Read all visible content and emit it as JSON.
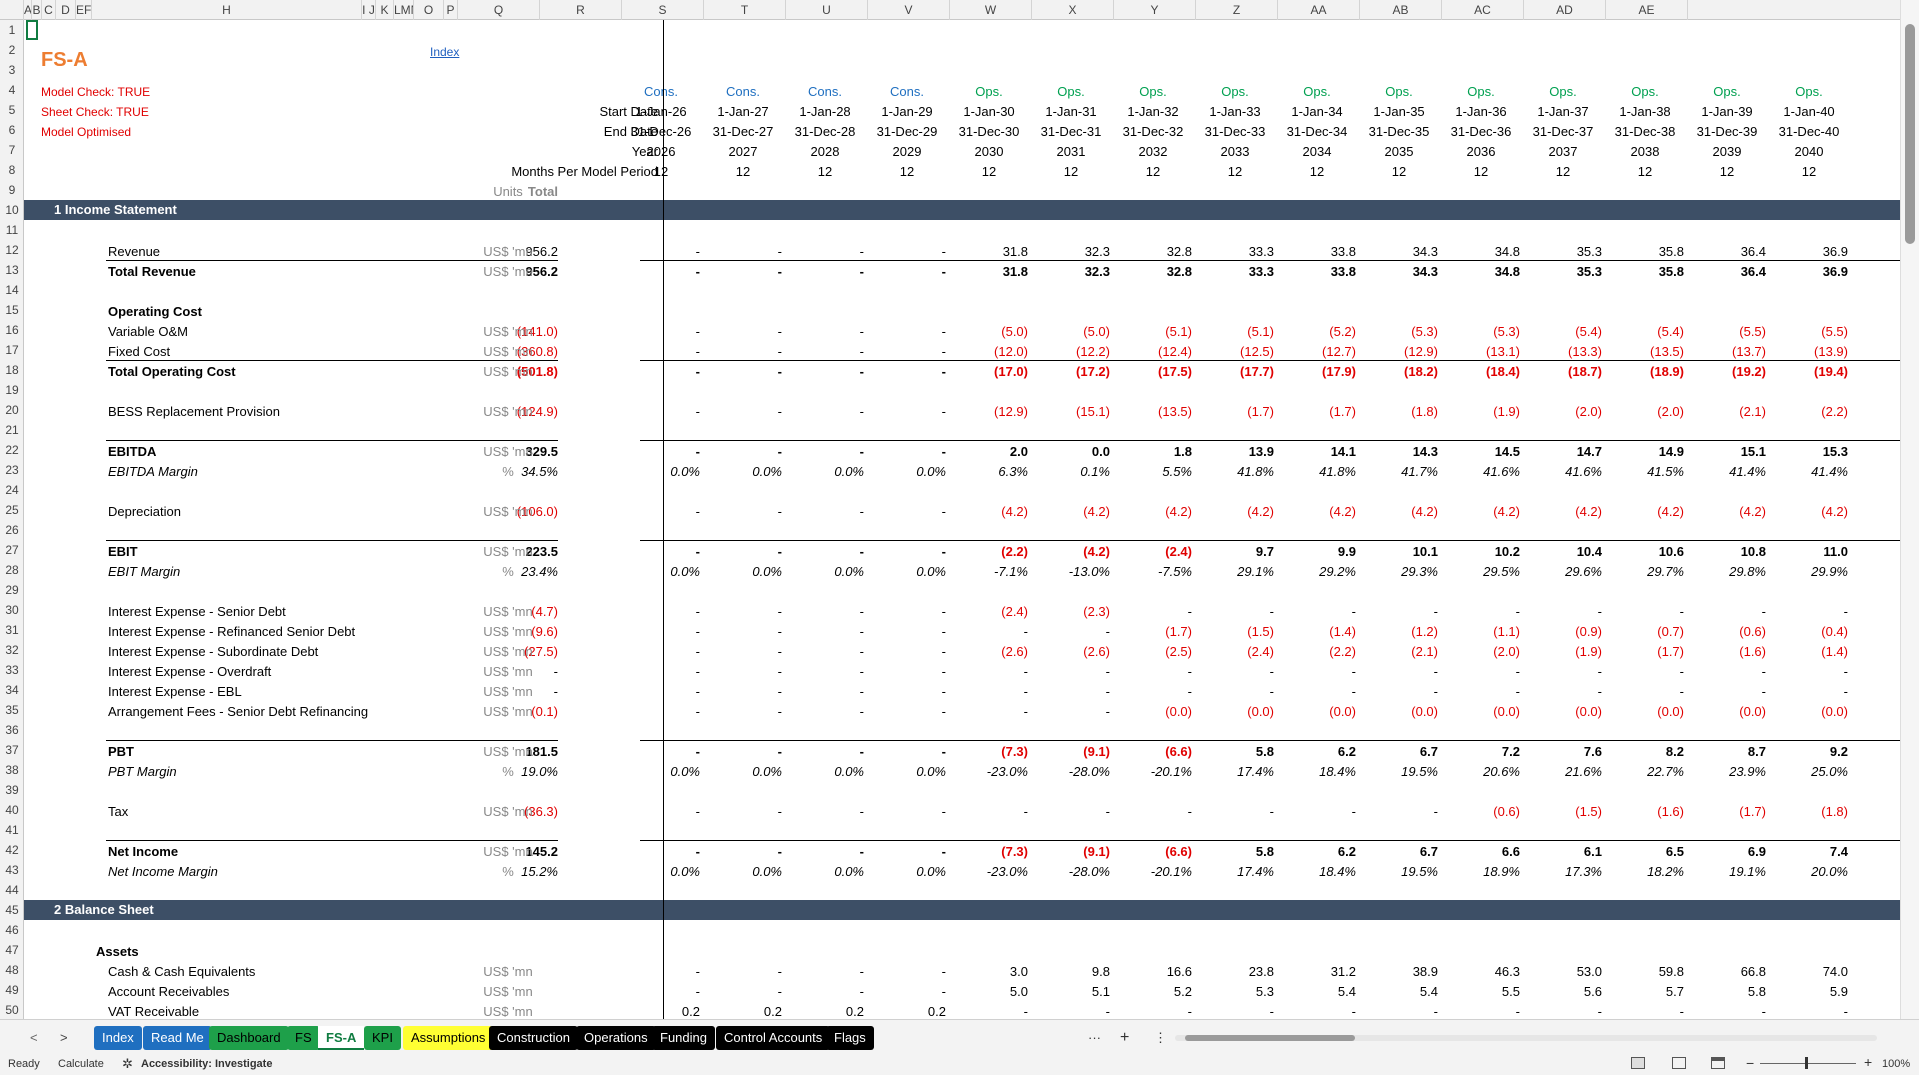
{
  "columns": [
    "A",
    "B",
    "C",
    "D",
    "EFG",
    "H",
    "I J",
    "K",
    "LMN",
    "O",
    "P",
    "Q",
    "R",
    "S",
    "T",
    "U",
    "V",
    "W",
    "X",
    "Y",
    "Z",
    "AA",
    "AB",
    "AC",
    "AD",
    "AE"
  ],
  "sheet": {
    "title": "FS-A",
    "index_link": "Index",
    "checks": [
      "Model Check: TRUE",
      "Sheet Check: TRUE",
      "Model Optimised"
    ],
    "header_labels": [
      "Start Date",
      "End Date",
      "Year",
      "Months Per Model Period"
    ],
    "total_label": "Total",
    "units_label": "Units",
    "periods": [
      "Cons.",
      "Cons.",
      "Cons.",
      "Cons.",
      "Ops.",
      "Ops.",
      "Ops.",
      "Ops.",
      "Ops.",
      "Ops.",
      "Ops.",
      "Ops.",
      "Ops.",
      "Ops.",
      "Ops."
    ],
    "start_dates": [
      "1-Jan-26",
      "1-Jan-27",
      "1-Jan-28",
      "1-Jan-29",
      "1-Jan-30",
      "1-Jan-31",
      "1-Jan-32",
      "1-Jan-33",
      "1-Jan-34",
      "1-Jan-35",
      "1-Jan-36",
      "1-Jan-37",
      "1-Jan-38",
      "1-Jan-39",
      "1-Jan-40"
    ],
    "end_dates": [
      "31-Dec-26",
      "31-Dec-27",
      "31-Dec-28",
      "31-Dec-29",
      "31-Dec-30",
      "31-Dec-31",
      "31-Dec-32",
      "31-Dec-33",
      "31-Dec-34",
      "31-Dec-35",
      "31-Dec-36",
      "31-Dec-37",
      "31-Dec-38",
      "31-Dec-39",
      "31-Dec-40"
    ],
    "years": [
      "2026",
      "2027",
      "2028",
      "2029",
      "2030",
      "2031",
      "2032",
      "2033",
      "2034",
      "2035",
      "2036",
      "2037",
      "2038",
      "2039",
      "2040"
    ],
    "months": [
      "12",
      "12",
      "12",
      "12",
      "12",
      "12",
      "12",
      "12",
      "12",
      "12",
      "12",
      "12",
      "12",
      "12",
      "12"
    ],
    "rows": [
      {
        "n": 10,
        "type": "section",
        "label": "1  Income Statement"
      },
      {
        "n": 12,
        "label": "Revenue",
        "total": "956.2",
        "unit": "US$ 'mn",
        "vals": [
          "-",
          "-",
          "-",
          "-",
          "31.8",
          "32.3",
          "32.8",
          "33.3",
          "33.8",
          "34.3",
          "34.8",
          "35.3",
          "35.8",
          "36.4",
          "36.9"
        ]
      },
      {
        "n": 13,
        "label": "Total Revenue",
        "style": "bold",
        "topline": true,
        "total": "956.2",
        "unit": "US$ 'mn",
        "vals": [
          "-",
          "-",
          "-",
          "-",
          "31.8",
          "32.3",
          "32.8",
          "33.3",
          "33.8",
          "34.3",
          "34.8",
          "35.3",
          "35.8",
          "36.4",
          "36.9"
        ]
      },
      {
        "n": 15,
        "label": "Operating Cost",
        "style": "bold"
      },
      {
        "n": 16,
        "label": "Variable O&M",
        "total": "(141.0)",
        "unit": "US$ 'mn",
        "vals": [
          "-",
          "-",
          "-",
          "-",
          "(5.0)",
          "(5.0)",
          "(5.1)",
          "(5.1)",
          "(5.2)",
          "(5.3)",
          "(5.3)",
          "(5.4)",
          "(5.4)",
          "(5.5)",
          "(5.5)"
        ]
      },
      {
        "n": 17,
        "label": "Fixed Cost",
        "total": "(360.8)",
        "unit": "US$ 'mn",
        "vals": [
          "-",
          "-",
          "-",
          "-",
          "(12.0)",
          "(12.2)",
          "(12.4)",
          "(12.5)",
          "(12.7)",
          "(12.9)",
          "(13.1)",
          "(13.3)",
          "(13.5)",
          "(13.7)",
          "(13.9)"
        ]
      },
      {
        "n": 18,
        "label": "Total Operating Cost",
        "style": "bold",
        "topline": true,
        "total": "(501.8)",
        "unit": "US$ 'mn",
        "vals": [
          "-",
          "-",
          "-",
          "-",
          "(17.0)",
          "(17.2)",
          "(17.5)",
          "(17.7)",
          "(17.9)",
          "(18.2)",
          "(18.4)",
          "(18.7)",
          "(18.9)",
          "(19.2)",
          "(19.4)"
        ]
      },
      {
        "n": 20,
        "label": "BESS Replacement Provision",
        "total": "(124.9)",
        "unit": "US$ 'mn",
        "vals": [
          "-",
          "-",
          "-",
          "-",
          "(12.9)",
          "(15.1)",
          "(13.5)",
          "(1.7)",
          "(1.7)",
          "(1.8)",
          "(1.9)",
          "(2.0)",
          "(2.0)",
          "(2.1)",
          "(2.2)"
        ]
      },
      {
        "n": 22,
        "label": "EBITDA",
        "style": "bold",
        "topline": true,
        "total": "329.5",
        "unit": "US$ 'mn",
        "vals": [
          "-",
          "-",
          "-",
          "-",
          "2.0",
          "0.0",
          "1.8",
          "13.9",
          "14.1",
          "14.3",
          "14.5",
          "14.7",
          "14.9",
          "15.1",
          "15.3"
        ]
      },
      {
        "n": 23,
        "label": "EBITDA Margin",
        "style": "italic",
        "total": "34.5%",
        "unit": "%",
        "vals": [
          "0.0%",
          "0.0%",
          "0.0%",
          "0.0%",
          "6.3%",
          "0.1%",
          "5.5%",
          "41.8%",
          "41.8%",
          "41.7%",
          "41.6%",
          "41.6%",
          "41.5%",
          "41.4%",
          "41.4%"
        ]
      },
      {
        "n": 25,
        "label": "Depreciation",
        "total": "(106.0)",
        "unit": "US$ 'mn",
        "vals": [
          "-",
          "-",
          "-",
          "-",
          "(4.2)",
          "(4.2)",
          "(4.2)",
          "(4.2)",
          "(4.2)",
          "(4.2)",
          "(4.2)",
          "(4.2)",
          "(4.2)",
          "(4.2)",
          "(4.2)"
        ]
      },
      {
        "n": 27,
        "label": "EBIT",
        "style": "bold",
        "topline": true,
        "total": "223.5",
        "unit": "US$ 'mn",
        "vals": [
          "-",
          "-",
          "-",
          "-",
          "(2.2)",
          "(4.2)",
          "(2.4)",
          "9.7",
          "9.9",
          "10.1",
          "10.2",
          "10.4",
          "10.6",
          "10.8",
          "11.0"
        ]
      },
      {
        "n": 28,
        "label": "EBIT Margin",
        "style": "italic",
        "total": "23.4%",
        "unit": "%",
        "vals": [
          "0.0%",
          "0.0%",
          "0.0%",
          "0.0%",
          "-7.1%",
          "-13.0%",
          "-7.5%",
          "29.1%",
          "29.2%",
          "29.3%",
          "29.5%",
          "29.6%",
          "29.7%",
          "29.8%",
          "29.9%"
        ]
      },
      {
        "n": 30,
        "label": "Interest Expense - Senior Debt",
        "total": "(4.7)",
        "unit": "US$ 'mn",
        "vals": [
          "-",
          "-",
          "-",
          "-",
          "(2.4)",
          "(2.3)",
          "-",
          "-",
          "-",
          "-",
          "-",
          "-",
          "-",
          "-",
          "-"
        ]
      },
      {
        "n": 31,
        "label": "Interest Expense - Refinanced Senior Debt",
        "total": "(9.6)",
        "unit": "US$ 'mn",
        "vals": [
          "-",
          "-",
          "-",
          "-",
          "-",
          "-",
          "(1.7)",
          "(1.5)",
          "(1.4)",
          "(1.2)",
          "(1.1)",
          "(0.9)",
          "(0.7)",
          "(0.6)",
          "(0.4)"
        ]
      },
      {
        "n": 32,
        "label": "Interest Expense - Subordinate Debt",
        "total": "(27.5)",
        "unit": "US$ 'mn",
        "vals": [
          "-",
          "-",
          "-",
          "-",
          "(2.6)",
          "(2.6)",
          "(2.5)",
          "(2.4)",
          "(2.2)",
          "(2.1)",
          "(2.0)",
          "(1.9)",
          "(1.7)",
          "(1.6)",
          "(1.4)"
        ]
      },
      {
        "n": 33,
        "label": "Interest Expense - Overdraft",
        "total": "-",
        "unit": "US$ 'mn",
        "vals": [
          "-",
          "-",
          "-",
          "-",
          "-",
          "-",
          "-",
          "-",
          "-",
          "-",
          "-",
          "-",
          "-",
          "-",
          "-"
        ]
      },
      {
        "n": 34,
        "label": "Interest Expense - EBL",
        "total": "-",
        "unit": "US$ 'mn",
        "vals": [
          "-",
          "-",
          "-",
          "-",
          "-",
          "-",
          "-",
          "-",
          "-",
          "-",
          "-",
          "-",
          "-",
          "-",
          "-"
        ]
      },
      {
        "n": 35,
        "label": "Arrangement Fees - Senior Debt Refinancing",
        "total": "(0.1)",
        "unit": "US$ 'mn",
        "vals": [
          "-",
          "-",
          "-",
          "-",
          "-",
          "-",
          "(0.0)",
          "(0.0)",
          "(0.0)",
          "(0.0)",
          "(0.0)",
          "(0.0)",
          "(0.0)",
          "(0.0)",
          "(0.0)"
        ]
      },
      {
        "n": 37,
        "label": "PBT",
        "style": "bold",
        "topline": true,
        "total": "181.5",
        "unit": "US$ 'mn",
        "vals": [
          "-",
          "-",
          "-",
          "-",
          "(7.3)",
          "(9.1)",
          "(6.6)",
          "5.8",
          "6.2",
          "6.7",
          "7.2",
          "7.6",
          "8.2",
          "8.7",
          "9.2"
        ]
      },
      {
        "n": 38,
        "label": "PBT Margin",
        "style": "italic",
        "total": "19.0%",
        "unit": "%",
        "vals": [
          "0.0%",
          "0.0%",
          "0.0%",
          "0.0%",
          "-23.0%",
          "-28.0%",
          "-20.1%",
          "17.4%",
          "18.4%",
          "19.5%",
          "20.6%",
          "21.6%",
          "22.7%",
          "23.9%",
          "25.0%"
        ]
      },
      {
        "n": 40,
        "label": "Tax",
        "total": "(36.3)",
        "unit": "US$ 'mn",
        "vals": [
          "-",
          "-",
          "-",
          "-",
          "-",
          "-",
          "-",
          "-",
          "-",
          "-",
          "(0.6)",
          "(1.5)",
          "(1.6)",
          "(1.7)",
          "(1.8)"
        ]
      },
      {
        "n": 42,
        "label": "Net Income",
        "style": "bold",
        "topline": true,
        "total": "145.2",
        "unit": "US$ 'mn",
        "vals": [
          "-",
          "-",
          "-",
          "-",
          "(7.3)",
          "(9.1)",
          "(6.6)",
          "5.8",
          "6.2",
          "6.7",
          "6.6",
          "6.1",
          "6.5",
          "6.9",
          "7.4"
        ]
      },
      {
        "n": 43,
        "label": "Net Income Margin",
        "style": "italic",
        "total": "15.2%",
        "unit": "%",
        "vals": [
          "0.0%",
          "0.0%",
          "0.0%",
          "0.0%",
          "-23.0%",
          "-28.0%",
          "-20.1%",
          "17.4%",
          "18.4%",
          "19.5%",
          "18.9%",
          "17.3%",
          "18.2%",
          "19.1%",
          "20.0%"
        ]
      },
      {
        "n": 45,
        "type": "section",
        "label": "2  Balance Sheet"
      },
      {
        "n": 47,
        "label": "Assets",
        "style": "bold",
        "indent": "small"
      },
      {
        "n": 48,
        "label": "Cash & Cash Equivalents",
        "unit": "US$ 'mn",
        "vals": [
          "-",
          "-",
          "-",
          "-",
          "3.0",
          "9.8",
          "16.6",
          "23.8",
          "31.2",
          "38.9",
          "46.3",
          "53.0",
          "59.8",
          "66.8",
          "74.0"
        ]
      },
      {
        "n": 49,
        "label": "Account Receivables",
        "unit": "US$ 'mn",
        "vals": [
          "-",
          "-",
          "-",
          "-",
          "5.0",
          "5.1",
          "5.2",
          "5.3",
          "5.4",
          "5.4",
          "5.5",
          "5.6",
          "5.7",
          "5.8",
          "5.9"
        ]
      },
      {
        "n": 50,
        "label": "VAT Receivable",
        "unit": "US$ 'mn",
        "vals": [
          "0.2",
          "0.2",
          "0.2",
          "0.2",
          "-",
          "-",
          "-",
          "-",
          "-",
          "-",
          "-",
          "-",
          "-",
          "-",
          "-"
        ]
      }
    ]
  },
  "tabs": [
    {
      "label": "Index",
      "bg": "#1f6fc0",
      "fg": "#ffffff"
    },
    {
      "label": "Read Me",
      "bg": "#1f6fc0",
      "fg": "#ffffff"
    },
    {
      "label": "Dashboard",
      "bg": "#1ea04a",
      "fg": "#000000"
    },
    {
      "label": "FS",
      "bg": "#1ea04a",
      "fg": "#000000"
    },
    {
      "label": "FS-A",
      "bg": "#ffffff",
      "fg": "#107c41",
      "active": true
    },
    {
      "label": "KPI",
      "bg": "#1ea04a",
      "fg": "#000000"
    },
    {
      "label": "Assumptions",
      "bg": "#ffff33",
      "fg": "#000000"
    },
    {
      "label": "Construction",
      "bg": "#000000",
      "fg": "#ffffff"
    },
    {
      "label": "Operations",
      "bg": "#000000",
      "fg": "#ffffff"
    },
    {
      "label": "Funding",
      "bg": "#000000",
      "fg": "#ffffff"
    },
    {
      "label": "Control Accounts",
      "bg": "#000000",
      "fg": "#ffffff"
    },
    {
      "label": "Flags",
      "bg": "#000000",
      "fg": "#ffffff"
    }
  ],
  "tab_controls": {
    "prev": "<",
    "next": ">",
    "more": "···",
    "add": "+",
    "options": "⋮"
  },
  "status": {
    "ready": "Ready",
    "calculate": "Calculate",
    "accessibility": "Accessibility: Investigate",
    "zoom": "100%"
  },
  "colors": {
    "section": "#3d4f66",
    "negative": "#e00000",
    "cons": "#1f6fc0",
    "ops": "#00a050",
    "title": "#ed7d31"
  }
}
